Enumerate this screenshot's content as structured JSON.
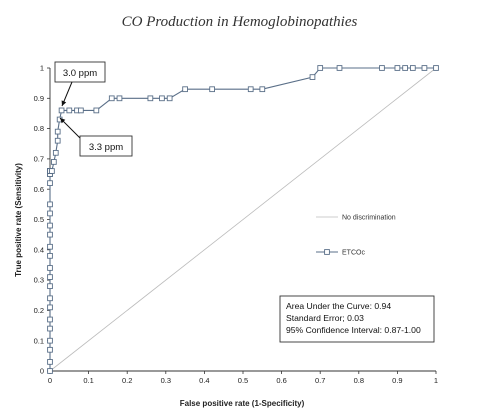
{
  "header": {
    "title": "CO Production in Hemoglobinopathies"
  },
  "chart_data": {
    "type": "line",
    "xlabel": "False positive rate (1-Specificity)",
    "ylabel": "True positive rate (Sensitivity)",
    "xlim": [
      0,
      1
    ],
    "ylim": [
      0,
      1
    ],
    "xticks": [
      "0",
      "0.1",
      "0.2",
      "0.3",
      "0.4",
      "0.5",
      "0.6",
      "0.7",
      "0.8",
      "0.9",
      "1"
    ],
    "yticks": [
      "0",
      "0.1",
      "0.2",
      "0.3",
      "0.4",
      "0.5",
      "0.6",
      "0.7",
      "0.8",
      "0.9",
      "1"
    ],
    "grid": false,
    "legend": {
      "placement": "right",
      "entries": [
        "No discrimination",
        "ETCOc"
      ]
    },
    "series": [
      {
        "name": "No discrimination",
        "style": "line",
        "color": "#bbbbbb",
        "x": [
          0,
          1
        ],
        "y": [
          0,
          1
        ]
      },
      {
        "name": "ETCOc",
        "style": "line-square-markers",
        "color": "#5a6f88",
        "x": [
          0,
          0,
          0,
          0,
          0,
          0,
          0,
          0,
          0,
          0,
          0,
          0,
          0,
          0,
          0,
          0,
          0,
          0,
          0,
          0,
          0,
          0,
          0,
          0,
          0,
          0,
          0,
          0,
          0,
          0,
          0,
          0.005,
          0.01,
          0.015,
          0.02,
          0.02,
          0.025,
          0.03,
          0.05,
          0.07,
          0.08,
          0.12,
          0.16,
          0.18,
          0.26,
          0.29,
          0.31,
          0.35,
          0.42,
          0.52,
          0.55,
          0.68,
          0.7,
          0.75,
          0.86,
          0.9,
          0.92,
          0.94,
          0.97,
          1
        ],
        "y": [
          0,
          0.03,
          0.07,
          0.1,
          0.14,
          0.17,
          0.21,
          0.24,
          0.28,
          0.31,
          0.34,
          0.38,
          0.41,
          0.45,
          0.48,
          0.52,
          0.55,
          0.62,
          0.65,
          0.65,
          0.66,
          0.66,
          0.66,
          0.66,
          0.66,
          0.66,
          0.66,
          0.66,
          0.66,
          0.66,
          0.66,
          0.66,
          0.69,
          0.72,
          0.76,
          0.79,
          0.83,
          0.86,
          0.86,
          0.86,
          0.86,
          0.86,
          0.9,
          0.9,
          0.9,
          0.9,
          0.9,
          0.93,
          0.93,
          0.93,
          0.93,
          0.97,
          1,
          1,
          1,
          1,
          1,
          1,
          1,
          1
        ]
      }
    ],
    "annotations": [
      {
        "text": "3.0 ppm",
        "x": 0.03,
        "y": 0.86
      },
      {
        "text": "3.3 ppm",
        "x": 0.03,
        "y": 0.83
      }
    ],
    "stats_box": [
      "Area Under the Curve: 0.94",
      "Standard Error; 0.03",
      "95% Confidence Interval: 0.87-1.00"
    ]
  }
}
